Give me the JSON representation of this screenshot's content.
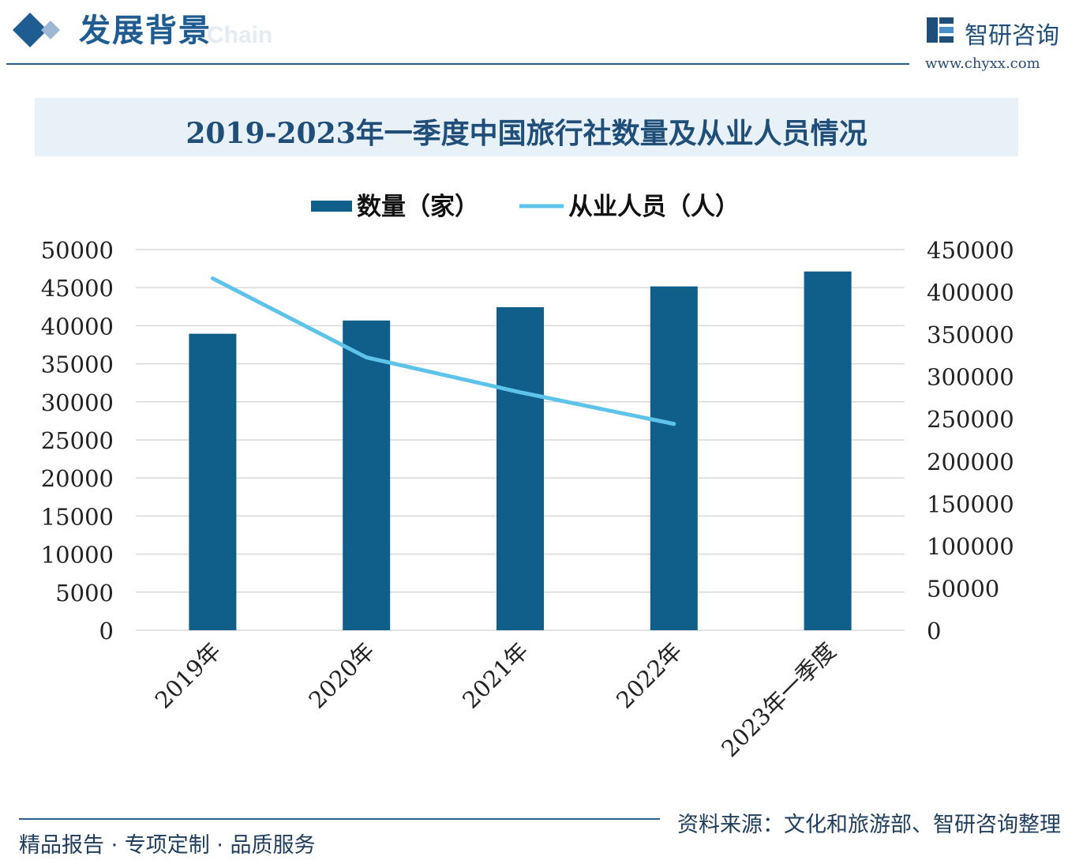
{
  "header": {
    "title": "发展背景",
    "subtitle_faint": "Chain"
  },
  "brand": {
    "name": "智研咨询",
    "url": "www.chyxx.com",
    "logo_icon": "chyxx-logo-icon"
  },
  "colors": {
    "accent": "#1f5c92",
    "bar": "#0f5f8a",
    "line": "#5ec3ea",
    "title_band": "#e8f0f8",
    "grid": "#d9d9d9"
  },
  "footer": {
    "tagline": "精品报告 · 专项定制 · 品质服务",
    "source": "资料来源：文化和旅游部、智研咨询整理"
  },
  "chart_data": {
    "type": "bar",
    "title": "2019-2023年一季度中国旅行社数量及从业人员情况",
    "categories": [
      "2019年",
      "2020年",
      "2021年",
      "2022年",
      "2023年一季度"
    ],
    "series": [
      {
        "name": "数量（家）",
        "type": "bar",
        "axis": "left",
        "values": [
          38943,
          40682,
          42432,
          45162,
          47121
        ]
      },
      {
        "name": "从业人员（人）",
        "type": "line",
        "axis": "right",
        "values": [
          415941,
          322497,
          281305,
          243900,
          null
        ]
      }
    ],
    "y_left": {
      "ylim": [
        0,
        50000
      ],
      "ticks": [
        "50000",
        "45000",
        "40000",
        "35000",
        "30000",
        "25000",
        "20000",
        "15000",
        "10000",
        "5000",
        "0"
      ]
    },
    "y_right": {
      "ylim": [
        0,
        450000
      ],
      "ticks": [
        "450000",
        "400000",
        "350000",
        "300000",
        "250000",
        "200000",
        "150000",
        "100000",
        "50000",
        "0"
      ]
    },
    "grid": true,
    "legend": "top-center"
  }
}
